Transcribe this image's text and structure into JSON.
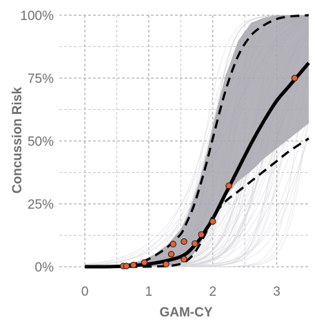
{
  "chart_data": {
    "type": "line",
    "title": "",
    "xlabel": "GAM-CY",
    "ylabel": "Concussion Risk",
    "xlim": [
      -0.4,
      3.5
    ],
    "ylim": [
      0,
      1
    ],
    "x_ticks": [
      0,
      1,
      2,
      3
    ],
    "x_tick_labels": [
      "0",
      "1",
      "2",
      "3"
    ],
    "y_ticks": [
      0,
      0.25,
      0.5,
      0.75,
      1
    ],
    "y_tick_labels": [
      "0%",
      "25%",
      "50%",
      "75%",
      "100%"
    ],
    "grid": true,
    "grid_style": "dashed",
    "legend": "none",
    "colors": {
      "band": "#a8a6ae",
      "traces": "#d6d6da",
      "median": "#000000",
      "points": "#e8622a",
      "grid": "#9a9a9a",
      "text": "#6f6f6f"
    },
    "series": [
      {
        "style": "solid-thick",
        "x": [
          0,
          0.3,
          0.6,
          0.9,
          1.1,
          1.3,
          1.5,
          1.6,
          1.7,
          1.8,
          1.9,
          2.0,
          2.2,
          2.4,
          2.6,
          2.8,
          3.0,
          3.2,
          3.5
        ],
        "y": [
          0,
          0,
          0.002,
          0.008,
          0.015,
          0.025,
          0.04,
          0.055,
          0.08,
          0.11,
          0.15,
          0.19,
          0.29,
          0.39,
          0.49,
          0.58,
          0.66,
          0.72,
          0.81
        ]
      },
      {
        "style": "dashed-upper",
        "x": [
          0,
          0.3,
          0.6,
          0.9,
          1.1,
          1.3,
          1.5,
          1.6,
          1.7,
          1.8,
          1.9,
          2.0,
          2.2,
          2.4,
          2.6,
          2.8,
          3.0,
          3.2,
          3.5
        ],
        "y": [
          0,
          0,
          0.005,
          0.02,
          0.045,
          0.08,
          0.13,
          0.18,
          0.24,
          0.32,
          0.41,
          0.51,
          0.7,
          0.84,
          0.92,
          0.96,
          0.985,
          0.995,
          1.0
        ]
      },
      {
        "style": "dashed-lower",
        "x": [
          0,
          0.3,
          0.6,
          0.9,
          1.1,
          1.3,
          1.4,
          1.5,
          1.6,
          1.7,
          1.8,
          1.9,
          2.0,
          2.2,
          2.4,
          2.6,
          2.8,
          3.0,
          3.2,
          3.5
        ],
        "y": [
          0,
          0,
          0,
          0,
          0.001,
          0.003,
          0.006,
          0.012,
          0.025,
          0.05,
          0.09,
          0.14,
          0.2,
          0.26,
          0.3,
          0.34,
          0.38,
          0.42,
          0.46,
          0.51
        ]
      }
    ],
    "band": {
      "x": [
        0,
        0.3,
        0.6,
        0.9,
        1.1,
        1.3,
        1.5,
        1.6,
        1.7,
        1.8,
        1.9,
        2.0,
        2.2,
        2.4,
        2.6,
        2.8,
        3.0,
        3.2,
        3.5
      ],
      "upper": [
        0,
        0,
        0.006,
        0.025,
        0.05,
        0.09,
        0.15,
        0.2,
        0.27,
        0.35,
        0.45,
        0.56,
        0.76,
        0.9,
        0.97,
        0.99,
        1.0,
        1.0,
        1.0
      ],
      "lower": [
        0,
        0,
        0,
        0,
        0.002,
        0.005,
        0.012,
        0.025,
        0.05,
        0.09,
        0.14,
        0.2,
        0.28,
        0.34,
        0.38,
        0.43,
        0.47,
        0.51,
        0.57
      ]
    },
    "points": [
      {
        "x": 0.6,
        "y": 0.003
      },
      {
        "x": 0.65,
        "y": 0.003
      },
      {
        "x": 0.76,
        "y": 0.007
      },
      {
        "x": 0.93,
        "y": 0.017
      },
      {
        "x": 1.27,
        "y": 0.01
      },
      {
        "x": 1.35,
        "y": 0.05
      },
      {
        "x": 1.38,
        "y": 0.09
      },
      {
        "x": 1.55,
        "y": 0.03
      },
      {
        "x": 1.55,
        "y": 0.1
      },
      {
        "x": 1.72,
        "y": 0.092
      },
      {
        "x": 1.82,
        "y": 0.128
      },
      {
        "x": 2.0,
        "y": 0.18
      },
      {
        "x": 2.25,
        "y": 0.322
      },
      {
        "x": 3.28,
        "y": 0.75
      }
    ]
  }
}
